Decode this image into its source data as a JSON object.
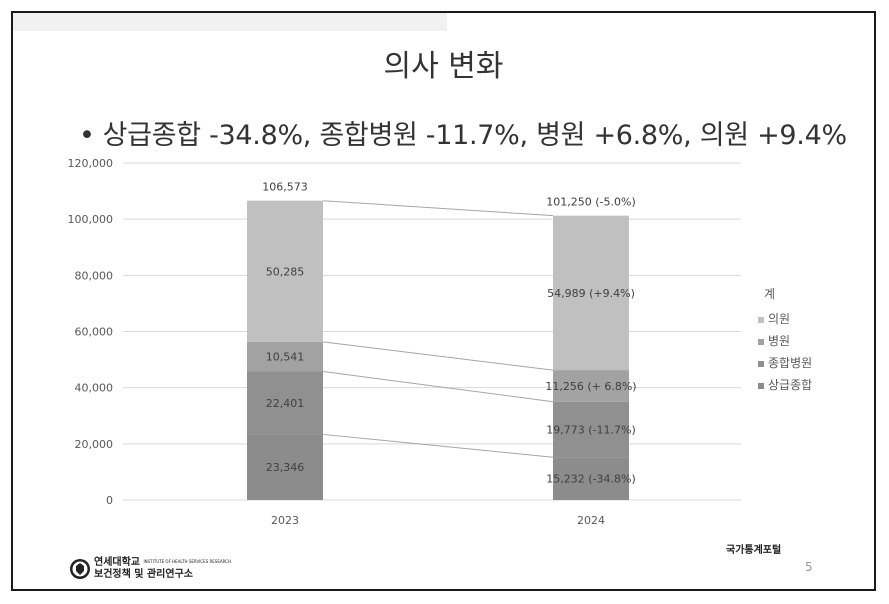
{
  "slide": {
    "title": "의사 변화",
    "bullet": "•",
    "subtitle": "상급종합 -34.8%, 종합병원 -11.7%, 병원 +6.8%, 의원 +9.4%",
    "source": "국가통계포털",
    "page_number": "5",
    "logo": {
      "line1": "연세대학교",
      "line1_small": "INSTITUTE OF HEALTH SERVICES RESEARCH",
      "line2": "보건정책 및 관리연구소"
    }
  },
  "chart_data": {
    "type": "bar",
    "stacked": true,
    "categories": [
      "2023",
      "2024"
    ],
    "ylim": [
      0,
      120000
    ],
    "yticks": [
      0,
      20000,
      40000,
      60000,
      80000,
      100000,
      120000
    ],
    "ytick_labels": [
      "0",
      "20,000",
      "40,000",
      "60,000",
      "80,000",
      "100,000",
      "120,000"
    ],
    "grid": true,
    "legend_position": "right",
    "legend_title": "계",
    "series": [
      {
        "name": "상급종합",
        "color": "#8c8c8c",
        "values": [
          23346,
          15232
        ],
        "labels": [
          "23,346",
          "15,232  (-34.8%)"
        ]
      },
      {
        "name": "종합병원",
        "color": "#909090",
        "values": [
          22401,
          19773
        ],
        "labels": [
          "22,401",
          "19,773  (-11.7%)"
        ]
      },
      {
        "name": "병원",
        "color": "#a2a2a2",
        "values": [
          10541,
          11256
        ],
        "labels": [
          "10,541",
          "11,256  (+ 6.8%)"
        ]
      },
      {
        "name": "의원",
        "color": "#c0c0c0",
        "values": [
          50285,
          54989
        ],
        "labels": [
          "50,285",
          "54,989  (+9.4%)"
        ]
      }
    ],
    "totals": [
      106573,
      101250
    ],
    "total_labels": [
      "106,573",
      "101,250  (-5.0%)"
    ]
  }
}
